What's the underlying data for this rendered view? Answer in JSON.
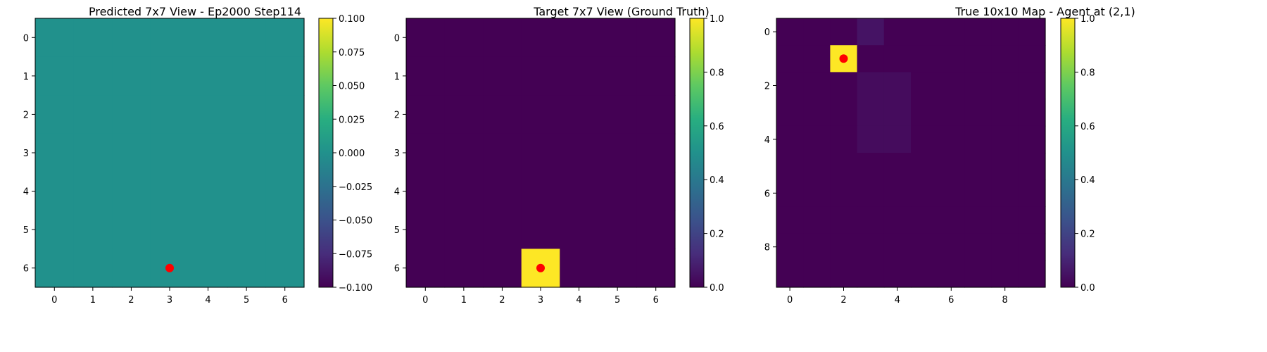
{
  "chart_data": [
    {
      "type": "heatmap",
      "title": "Predicted 7x7 View - Ep2000 Step114",
      "rows": 7,
      "cols": 7,
      "xticks": [
        0,
        1,
        2,
        3,
        4,
        5,
        6
      ],
      "yticks": [
        0,
        1,
        2,
        3,
        4,
        5,
        6
      ],
      "values": [
        [
          0,
          0,
          0,
          0,
          0,
          0,
          0
        ],
        [
          0,
          0,
          0,
          0,
          0,
          0,
          0
        ],
        [
          0,
          0,
          0,
          0,
          0,
          0,
          0
        ],
        [
          0,
          0,
          0,
          0,
          0,
          0,
          0
        ],
        [
          0,
          0,
          0,
          0,
          0,
          0,
          0
        ],
        [
          0,
          0,
          0,
          0,
          0,
          0,
          0
        ],
        [
          0,
          0,
          0,
          0,
          0,
          0,
          0
        ]
      ],
      "vmin": -0.1,
      "vmax": 0.1,
      "colormap": "viridis",
      "colorbar_ticks": [
        0.1,
        0.075,
        0.05,
        0.025,
        0.0,
        -0.025,
        -0.05,
        -0.075,
        -0.1
      ],
      "colorbar_tick_labels": [
        "0.100",
        "0.075",
        "0.050",
        "0.025",
        "0.000",
        "−0.025",
        "−0.050",
        "−0.075",
        "−0.100"
      ],
      "marker": {
        "x": 3,
        "y": 6,
        "color": "#ff0000"
      }
    },
    {
      "type": "heatmap",
      "title": "Target 7x7 View (Ground Truth)",
      "rows": 7,
      "cols": 7,
      "xticks": [
        0,
        1,
        2,
        3,
        4,
        5,
        6
      ],
      "yticks": [
        0,
        1,
        2,
        3,
        4,
        5,
        6
      ],
      "values": [
        [
          0,
          0,
          0,
          0,
          0,
          0,
          0
        ],
        [
          0,
          0,
          0,
          0,
          0,
          0,
          0
        ],
        [
          0,
          0,
          0,
          0,
          0,
          0,
          0
        ],
        [
          0,
          0,
          0,
          0,
          0,
          0,
          0
        ],
        [
          0,
          0,
          0,
          0,
          0,
          0,
          0
        ],
        [
          0,
          0,
          0,
          0,
          0,
          0,
          0
        ],
        [
          0,
          0,
          0,
          1,
          0,
          0,
          0
        ]
      ],
      "vmin": 0,
      "vmax": 1,
      "colormap": "viridis",
      "colorbar_ticks": [
        1.0,
        0.8,
        0.6,
        0.4,
        0.2,
        0.0
      ],
      "colorbar_tick_labels": [
        "1.0",
        "0.8",
        "0.6",
        "0.4",
        "0.2",
        "0.0"
      ],
      "marker": {
        "x": 3,
        "y": 6,
        "color": "#ff0000"
      }
    },
    {
      "type": "heatmap",
      "title": "True 10x10 Map - Agent at (2,1)",
      "rows": 10,
      "cols": 10,
      "xticks": [
        0,
        2,
        4,
        6,
        8
      ],
      "yticks": [
        0,
        2,
        4,
        6,
        8
      ],
      "values": [
        [
          0,
          0,
          0,
          0.05,
          0,
          0,
          0,
          0,
          0,
          0
        ],
        [
          0,
          0,
          1,
          0,
          0,
          0,
          0,
          0,
          0,
          0
        ],
        [
          0,
          0,
          0,
          0.03,
          0.03,
          0,
          0,
          0,
          0,
          0
        ],
        [
          0,
          0,
          0,
          0.03,
          0.03,
          0,
          0,
          0,
          0,
          0
        ],
        [
          0,
          0,
          0,
          0.03,
          0.03,
          0,
          0,
          0,
          0,
          0
        ],
        [
          0,
          0,
          0,
          0,
          0,
          0,
          0,
          0,
          0,
          0
        ],
        [
          0,
          0,
          0,
          0,
          0,
          0,
          0,
          0,
          0,
          0
        ],
        [
          0,
          0,
          0,
          0,
          0,
          0,
          0,
          0,
          0,
          0
        ],
        [
          0,
          0,
          0,
          0,
          0,
          0,
          0,
          0,
          0,
          0
        ],
        [
          0,
          0,
          0,
          0,
          0,
          0,
          0,
          0,
          0,
          0
        ]
      ],
      "vmin": 0,
      "vmax": 1,
      "colormap": "viridis",
      "colorbar_ticks": [
        1.0,
        0.8,
        0.6,
        0.4,
        0.2,
        0.0
      ],
      "colorbar_tick_labels": [
        "1.0",
        "0.8",
        "0.6",
        "0.4",
        "0.2",
        "0.0"
      ],
      "marker": {
        "x": 2,
        "y": 1,
        "color": "#ff0000"
      }
    }
  ]
}
